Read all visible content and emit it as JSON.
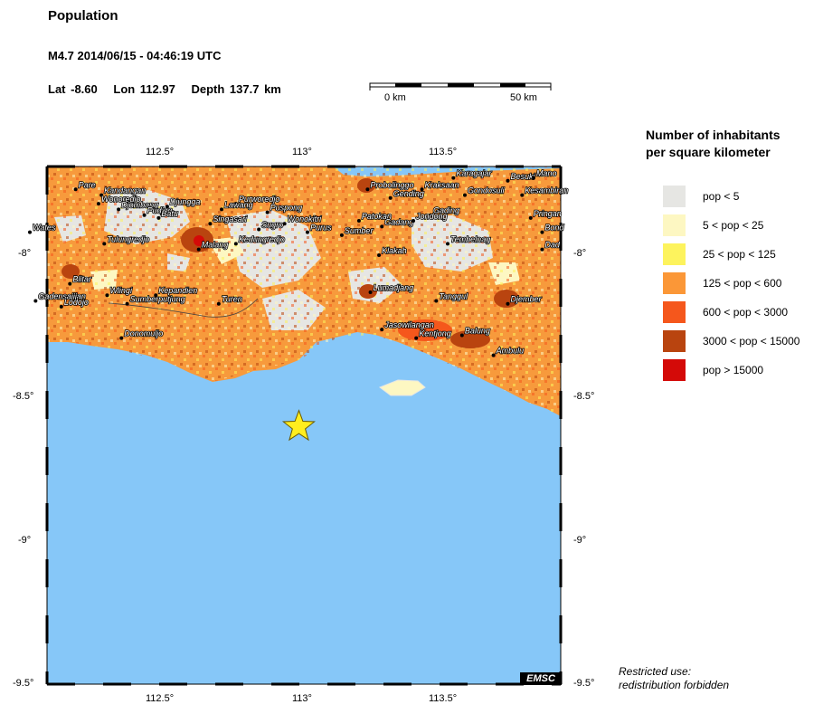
{
  "header": {
    "title": "Population",
    "event": "M4.7  2014/06/15 - 04:46:19 UTC",
    "lat": "Lat -8.60",
    "lon": "Lon 112.97",
    "depth": "Depth 137.7 km"
  },
  "scale_bar": {
    "start_label": "0 km",
    "end_label": "50 km"
  },
  "axes": {
    "top_ticks": [
      "112.5°",
      "113°",
      "113.5°"
    ],
    "bottom_ticks": [
      "112.5°",
      "113°",
      "113.5°"
    ],
    "left_ticks": [
      "-8°",
      "-8.5°",
      "-9°",
      "-9.5°"
    ],
    "right_ticks": [
      "-8°",
      "-8.5°",
      "-9°",
      "-9.5°"
    ]
  },
  "legend": {
    "title_line1": "Number of inhabitants",
    "title_line2": "per square kilometer",
    "items": [
      {
        "label": "pop < 5",
        "color": "#e6e6e3"
      },
      {
        "label": "5 < pop < 25",
        "color": "#fdf7c2"
      },
      {
        "label": "25 < pop < 125",
        "color": "#fdf35d"
      },
      {
        "label": "125 < pop < 600",
        "color": "#fb9737"
      },
      {
        "label": "600 < pop < 3000",
        "color": "#f5571c"
      },
      {
        "label": "3000 < pop < 15000",
        "color": "#b9440f"
      },
      {
        "label": "pop > 15000",
        "color": "#d40a08"
      }
    ]
  },
  "epicenter": {
    "lat": -8.6,
    "lon": 112.97,
    "color": "#ffee1f"
  },
  "cities": [
    {
      "name": "Kandangan",
      "lon": 112.28,
      "lat": -7.79
    },
    {
      "name": "Pare",
      "lon": 112.19,
      "lat": -7.77
    },
    {
      "name": "Wonoredjo",
      "lon": 112.27,
      "lat": -7.82
    },
    {
      "name": "Djombang",
      "lon": 112.34,
      "lat": -7.84
    },
    {
      "name": "Djungga",
      "lon": 112.51,
      "lat": -7.83
    },
    {
      "name": "Pudjon",
      "lon": 112.43,
      "lat": -7.86
    },
    {
      "name": "Batu",
      "lon": 112.48,
      "lat": -7.87
    },
    {
      "name": "Purworedjo",
      "lon": 112.75,
      "lat": -7.82
    },
    {
      "name": "Lawang",
      "lon": 112.7,
      "lat": -7.84
    },
    {
      "name": "Puspong",
      "lon": 112.86,
      "lat": -7.85
    },
    {
      "name": "Singasari",
      "lon": 112.66,
      "lat": -7.89
    },
    {
      "name": "Sugro",
      "lon": 112.83,
      "lat": -7.91
    },
    {
      "name": "Wonokitri",
      "lon": 112.92,
      "lat": -7.89
    },
    {
      "name": "Purus",
      "lon": 113.0,
      "lat": -7.92
    },
    {
      "name": "Sumber",
      "lon": 113.12,
      "lat": -7.93
    },
    {
      "name": "Wates",
      "lon": 112.03,
      "lat": -7.92
    },
    {
      "name": "Tulungredjo",
      "lon": 112.29,
      "lat": -7.96
    },
    {
      "name": "Malang",
      "lon": 112.62,
      "lat": -7.98
    },
    {
      "name": "Kedungredjo",
      "lon": 112.75,
      "lat": -7.96
    },
    {
      "name": "Probolinggo",
      "lon": 113.21,
      "lat": -7.77
    },
    {
      "name": "Gending",
      "lon": 113.29,
      "lat": -7.8
    },
    {
      "name": "Kraksaan",
      "lon": 113.4,
      "lat": -7.77
    },
    {
      "name": "Karagajar",
      "lon": 113.51,
      "lat": -7.73
    },
    {
      "name": "Gondosuli",
      "lon": 113.55,
      "lat": -7.79
    },
    {
      "name": "Besuki",
      "lon": 113.7,
      "lat": -7.74
    },
    {
      "name": "Mano",
      "lon": 113.79,
      "lat": -7.73
    },
    {
      "name": "Kesambiran",
      "lon": 113.75,
      "lat": -7.79
    },
    {
      "name": "Pringan",
      "lon": 113.78,
      "lat": -7.87
    },
    {
      "name": "Bond",
      "lon": 113.82,
      "lat": -7.92
    },
    {
      "name": "Dad",
      "lon": 113.82,
      "lat": -7.98
    },
    {
      "name": "Patokan",
      "lon": 113.18,
      "lat": -7.88
    },
    {
      "name": "Gadang",
      "lon": 113.26,
      "lat": -7.9
    },
    {
      "name": "Gading",
      "lon": 113.43,
      "lat": -7.86
    },
    {
      "name": "Jondong",
      "lon": 113.37,
      "lat": -7.88
    },
    {
      "name": "Tembelnag",
      "lon": 113.49,
      "lat": -7.96
    },
    {
      "name": "Klakah",
      "lon": 113.25,
      "lat": -8.0
    },
    {
      "name": "Blitar",
      "lon": 112.17,
      "lat": -8.1
    },
    {
      "name": "Wlingi",
      "lon": 112.3,
      "lat": -8.14
    },
    {
      "name": "Kepandien",
      "lon": 112.47,
      "lat": -8.14
    },
    {
      "name": "Sumberputjung",
      "lon": 112.37,
      "lat": -8.17
    },
    {
      "name": "Turen",
      "lon": 112.69,
      "lat": -8.17
    },
    {
      "name": "Gadensajijan",
      "lon": 112.05,
      "lat": -8.16
    },
    {
      "name": "Lodojo",
      "lon": 112.14,
      "lat": -8.18
    },
    {
      "name": "Lumadjang",
      "lon": 113.22,
      "lat": -8.13
    },
    {
      "name": "Tanggul",
      "lon": 113.45,
      "lat": -8.16
    },
    {
      "name": "Djember",
      "lon": 113.7,
      "lat": -8.17
    },
    {
      "name": "Donomuljo",
      "lon": 112.35,
      "lat": -8.29
    },
    {
      "name": "Jasowilangan",
      "lon": 113.26,
      "lat": -8.26
    },
    {
      "name": "Kentjong",
      "lon": 113.38,
      "lat": -8.29
    },
    {
      "name": "Balung",
      "lon": 113.54,
      "lat": -8.28
    },
    {
      "name": "Ambulu",
      "lon": 113.65,
      "lat": -8.35
    }
  ],
  "credit": "EMSC",
  "note_line1": "Restricted use:",
  "note_line2": "redistribution forbidden"
}
